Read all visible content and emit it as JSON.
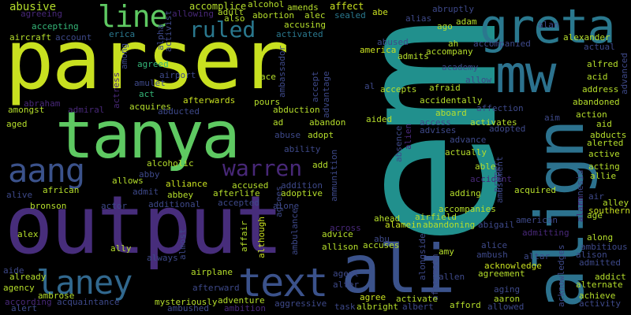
{
  "words": [
    {
      "text": "em",
      "color": "#21908d"
    },
    {
      "text": "parser",
      "color": "#c8e020"
    },
    {
      "text": "output",
      "color": "#472d7b"
    },
    {
      "text": "tanya",
      "color": "#5ec962"
    },
    {
      "text": "align",
      "color": "#2c728e"
    },
    {
      "text": "greta",
      "color": "#2a788e"
    },
    {
      "text": "ali",
      "color": "#3b528b"
    },
    {
      "text": "mw",
      "color": "#2c728e"
    },
    {
      "text": "text",
      "color": "#3b528b"
    },
    {
      "text": "laney",
      "color": "#31688e"
    },
    {
      "text": "aang",
      "color": "#3b528b"
    },
    {
      "text": "line",
      "color": "#5ec962"
    },
    {
      "text": "ruled",
      "color": "#2a788e"
    },
    {
      "text": "warren",
      "color": "#482878"
    },
    {
      "text": "abusive",
      "color": "#b5de2b"
    },
    {
      "text": "agreeing",
      "color": "#482878"
    },
    {
      "text": "aircraft",
      "color": "#b5de2b"
    },
    {
      "text": "accepting",
      "color": "#35b779"
    },
    {
      "text": "account",
      "color": "#3e4989"
    },
    {
      "text": "erica",
      "color": "#2a788e"
    },
    {
      "text": "abraham",
      "color": "#482878"
    },
    {
      "text": "amongst",
      "color": "#b5de2b"
    },
    {
      "text": "admiral",
      "color": "#482878"
    },
    {
      "text": "aged",
      "color": "#b5de2b"
    },
    {
      "text": "agreed",
      "color": "#35b779"
    },
    {
      "text": "amulet",
      "color": "#3e4989"
    },
    {
      "text": "among",
      "color": "#3e4989"
    },
    {
      "text": "alpha",
      "color": "#3e4989"
    },
    {
      "text": "accomplice",
      "color": "#b5de2b"
    },
    {
      "text": "alcohol",
      "color": "#b5de2b"
    },
    {
      "text": "adult",
      "color": "#b5de2b"
    },
    {
      "text": "also",
      "color": "#b5de2b"
    },
    {
      "text": "allowing",
      "color": "#482878"
    },
    {
      "text": "amends",
      "color": "#b5de2b"
    },
    {
      "text": "affect",
      "color": "#c8e020"
    },
    {
      "text": "abe",
      "color": "#c8e020"
    },
    {
      "text": "sealed",
      "color": "#2a788e"
    },
    {
      "text": "abortion",
      "color": "#b5de2b"
    },
    {
      "text": "alec",
      "color": "#b5de2b"
    },
    {
      "text": "accusing",
      "color": "#b5de2b"
    },
    {
      "text": "activated",
      "color": "#2a788e"
    },
    {
      "text": "activist",
      "color": "#3e4989"
    },
    {
      "text": "airport",
      "color": "#3e4989"
    },
    {
      "text": "act",
      "color": "#35b779"
    },
    {
      "text": "actress",
      "color": "#482878"
    },
    {
      "text": "acquires",
      "color": "#b5de2b"
    },
    {
      "text": "afterwards",
      "color": "#c8e020"
    },
    {
      "text": "abducted",
      "color": "#3e4989"
    },
    {
      "text": "ace",
      "color": "#b5de2b"
    },
    {
      "text": "pours",
      "color": "#b5de2b"
    },
    {
      "text": "ambassador",
      "color": "#3e4989"
    },
    {
      "text": "abduction",
      "color": "#b5de2b"
    },
    {
      "text": "ad",
      "color": "#b5de2b"
    },
    {
      "text": "abuse",
      "color": "#3e4989"
    },
    {
      "text": "adopt",
      "color": "#b5de2b"
    },
    {
      "text": "ability",
      "color": "#3e4989"
    },
    {
      "text": "add",
      "color": "#b5de2b"
    },
    {
      "text": "accused",
      "color": "#b5de2b"
    },
    {
      "text": "afterlife",
      "color": "#b5de2b"
    },
    {
      "text": "addition",
      "color": "#3e4989"
    },
    {
      "text": "adoptive",
      "color": "#b5de2b"
    },
    {
      "text": "alcoholic",
      "color": "#b5de2b"
    },
    {
      "text": "abby",
      "color": "#3e4989"
    },
    {
      "text": "allows",
      "color": "#b5de2b"
    },
    {
      "text": "alliance",
      "color": "#c8e020"
    },
    {
      "text": "african",
      "color": "#b5de2b"
    },
    {
      "text": "alive",
      "color": "#3e4989"
    },
    {
      "text": "admit",
      "color": "#3e4989"
    },
    {
      "text": "abbey",
      "color": "#b5de2b"
    },
    {
      "text": "bronson",
      "color": "#b5de2b"
    },
    {
      "text": "actor",
      "color": "#3e4989"
    },
    {
      "text": "additional",
      "color": "#3e4989"
    },
    {
      "text": "accepted",
      "color": "#3e4989"
    },
    {
      "text": "agrees",
      "color": "#3e4989"
    },
    {
      "text": "alone",
      "color": "#3e4989"
    },
    {
      "text": "alex",
      "color": "#b5de2b"
    },
    {
      "text": "ally",
      "color": "#b5de2b"
    },
    {
      "text": "always",
      "color": "#3e4989"
    },
    {
      "text": "almost",
      "color": "#3e4989"
    },
    {
      "text": "affair",
      "color": "#b5de2b"
    },
    {
      "text": "although",
      "color": "#c8e020"
    },
    {
      "text": "ambulance",
      "color": "#3e4989"
    },
    {
      "text": "aide",
      "color": "#3e4989"
    },
    {
      "text": "already",
      "color": "#b5de2b"
    },
    {
      "text": "agency",
      "color": "#b5de2b"
    },
    {
      "text": "according",
      "color": "#482878"
    },
    {
      "text": "alert",
      "color": "#3e4989"
    },
    {
      "text": "ambrose",
      "color": "#b5de2b"
    },
    {
      "text": "acquaintance",
      "color": "#3e4989"
    },
    {
      "text": "airplane",
      "color": "#b5de2b"
    },
    {
      "text": "afterward",
      "color": "#3e4989"
    },
    {
      "text": "mysteriously",
      "color": "#b5de2b"
    },
    {
      "text": "adventure",
      "color": "#b5de2b"
    },
    {
      "text": "ambushed",
      "color": "#3e4989"
    },
    {
      "text": "ambition",
      "color": "#482878"
    },
    {
      "text": "aggressive",
      "color": "#3e4989"
    },
    {
      "text": "accept",
      "color": "#3e4989"
    },
    {
      "text": "advantage",
      "color": "#3e4989"
    },
    {
      "text": "abandon",
      "color": "#b5de2b"
    },
    {
      "text": "ammunition",
      "color": "#3e4989"
    },
    {
      "text": "america",
      "color": "#c8e020"
    },
    {
      "text": "admits",
      "color": "#b5de2b"
    },
    {
      "text": "abused",
      "color": "#3e4989"
    },
    {
      "text": "al",
      "color": "#3e4989"
    },
    {
      "text": "accepts",
      "color": "#b5de2b"
    },
    {
      "text": "afraid",
      "color": "#b5de2b"
    },
    {
      "text": "aided",
      "color": "#b5de2b"
    },
    {
      "text": "absence",
      "color": "#3e4989"
    },
    {
      "text": "alien",
      "color": "#482878"
    },
    {
      "text": "across",
      "color": "#482878"
    },
    {
      "text": "ahead",
      "color": "#b5de2b"
    },
    {
      "text": "alamein",
      "color": "#c8e020"
    },
    {
      "text": "advice",
      "color": "#b5de2b"
    },
    {
      "text": "abu",
      "color": "#3e4989"
    },
    {
      "text": "accuses",
      "color": "#b5de2b"
    },
    {
      "text": "allison",
      "color": "#b5de2b"
    },
    {
      "text": "agent",
      "color": "#3e4989"
    },
    {
      "text": "alter",
      "color": "#3e4989"
    },
    {
      "text": "agree",
      "color": "#c8e020"
    },
    {
      "text": "albright",
      "color": "#b5de2b"
    },
    {
      "text": "task",
      "color": "#3e4989"
    },
    {
      "text": "alongside",
      "color": "#3e4989"
    },
    {
      "text": "aftermath",
      "color": "#3e4989"
    },
    {
      "text": "activate",
      "color": "#b5de2b"
    },
    {
      "text": "albert",
      "color": "#3e4989"
    },
    {
      "text": "abruptly",
      "color": "#3e4989"
    },
    {
      "text": "alias",
      "color": "#3e4989"
    },
    {
      "text": "adam",
      "color": "#b5de2b"
    },
    {
      "text": "ago",
      "color": "#b5de2b"
    },
    {
      "text": "ah",
      "color": "#b5de2b"
    },
    {
      "text": "accompanied",
      "color": "#3e4989"
    },
    {
      "text": "accompany",
      "color": "#b5de2b"
    },
    {
      "text": "academy",
      "color": "#3e4989"
    },
    {
      "text": "allow",
      "color": "#3e4989"
    },
    {
      "text": "accidentally",
      "color": "#b5de2b"
    },
    {
      "text": "aboard",
      "color": "#b5de2b"
    },
    {
      "text": "access",
      "color": "#3e4989"
    },
    {
      "text": "activates",
      "color": "#b5de2b"
    },
    {
      "text": "advises",
      "color": "#3e4989"
    },
    {
      "text": "advance",
      "color": "#3e4989"
    },
    {
      "text": "adopted",
      "color": "#3e4989"
    },
    {
      "text": "actually",
      "color": "#b5de2b"
    },
    {
      "text": "able",
      "color": "#b5de2b"
    },
    {
      "text": "accident",
      "color": "#482878"
    },
    {
      "text": "proper",
      "color": "#3e4989"
    },
    {
      "text": "adding",
      "color": "#b5de2b"
    },
    {
      "text": "accompanies",
      "color": "#b5de2b"
    },
    {
      "text": "airfield",
      "color": "#b5de2b"
    },
    {
      "text": "abandoning",
      "color": "#b5de2b"
    },
    {
      "text": "abigail",
      "color": "#3e4989"
    },
    {
      "text": "amy",
      "color": "#b5de2b"
    },
    {
      "text": "alice",
      "color": "#3e4989"
    },
    {
      "text": "ambush",
      "color": "#3e4989"
    },
    {
      "text": "allen",
      "color": "#3e4989"
    },
    {
      "text": "afford",
      "color": "#b5de2b"
    },
    {
      "text": "acknowledge",
      "color": "#c8e020"
    },
    {
      "text": "agreement",
      "color": "#b5de2b"
    },
    {
      "text": "aging",
      "color": "#3e4989"
    },
    {
      "text": "aaron",
      "color": "#b5de2b"
    },
    {
      "text": "allowed",
      "color": "#3e4989"
    },
    {
      "text": "altar",
      "color": "#3e4989"
    },
    {
      "text": "affection",
      "color": "#3e4989"
    },
    {
      "text": "amusement",
      "color": "#3e4989"
    },
    {
      "text": "acquired",
      "color": "#b5de2b"
    },
    {
      "text": "american",
      "color": "#3e4989"
    },
    {
      "text": "admitting",
      "color": "#482878"
    },
    {
      "text": "alan",
      "color": "#3e4989"
    },
    {
      "text": "alexander",
      "color": "#b5de2b"
    },
    {
      "text": "actual",
      "color": "#3e4989"
    },
    {
      "text": "alfred",
      "color": "#b5de2b"
    },
    {
      "text": "acid",
      "color": "#b5de2b"
    },
    {
      "text": "address",
      "color": "#b5de2b"
    },
    {
      "text": "advanced",
      "color": "#3e4989"
    },
    {
      "text": "abandoned",
      "color": "#b5de2b"
    },
    {
      "text": "aim",
      "color": "#3e4989"
    },
    {
      "text": "action",
      "color": "#b5de2b"
    },
    {
      "text": "aid",
      "color": "#b5de2b"
    },
    {
      "text": "abducts",
      "color": "#b5de2b"
    },
    {
      "text": "alerted",
      "color": "#b5de2b"
    },
    {
      "text": "active",
      "color": "#b5de2b"
    },
    {
      "text": "acting",
      "color": "#b5de2b"
    },
    {
      "text": "allie",
      "color": "#b5de2b"
    },
    {
      "text": "amnesia",
      "color": "#3e4989"
    },
    {
      "text": "air",
      "color": "#3e4989"
    },
    {
      "text": "alley",
      "color": "#b5de2b"
    },
    {
      "text": "alarm",
      "color": "#482878"
    },
    {
      "text": "southern",
      "color": "#c8e020"
    },
    {
      "text": "age",
      "color": "#b5de2b"
    },
    {
      "text": "along",
      "color": "#b5de2b"
    },
    {
      "text": "ambitious",
      "color": "#3e4989"
    },
    {
      "text": "alison",
      "color": "#3e4989"
    },
    {
      "text": "admitted",
      "color": "#3e4989"
    },
    {
      "text": "addict",
      "color": "#b5de2b"
    },
    {
      "text": "acknowledges",
      "color": "#3e4989"
    },
    {
      "text": "alternate",
      "color": "#b5de2b"
    },
    {
      "text": "achieve",
      "color": "#b5de2b"
    },
    {
      "text": "activity",
      "color": "#3e4989"
    }
  ]
}
